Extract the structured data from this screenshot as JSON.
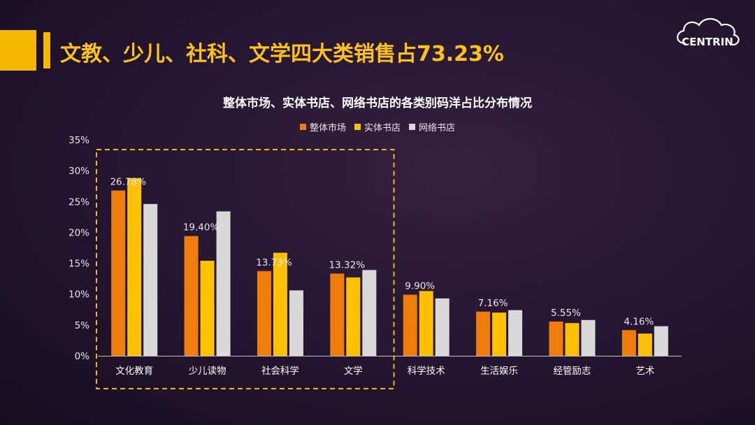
{
  "header": {
    "headline": "文教、少儿、社科、文学四大类销售占73.23%",
    "logo_text": "CENTRIN"
  },
  "colors": {
    "accent": "#f5b800",
    "series_overall": "#ef7d0c",
    "series_physical": "#ffc000",
    "series_online": "#d9d9d9",
    "highlight_box": "#f5b800"
  },
  "chart_data": {
    "type": "bar",
    "title": "整体市场、实体书店、网络书店的各类别码洋占比分布情况",
    "categories": [
      "文化教育",
      "少儿读物",
      "社会科学",
      "文学",
      "科学技术",
      "生活娱乐",
      "经管励志",
      "艺术"
    ],
    "series": [
      {
        "name": "整体市场",
        "values": [
          26.78,
          19.4,
          13.73,
          13.32,
          9.9,
          7.16,
          5.55,
          4.16
        ]
      },
      {
        "name": "实体书店",
        "values": [
          28.8,
          15.4,
          16.7,
          12.7,
          10.5,
          7.0,
          5.3,
          3.6
        ]
      },
      {
        "name": "网络书店",
        "values": [
          24.6,
          23.4,
          10.6,
          13.9,
          9.3,
          7.4,
          5.8,
          4.8
        ]
      }
    ],
    "data_labels": [
      "26.78%",
      "19.40%",
      "13.73%",
      "13.32%",
      "9.90%",
      "7.16%",
      "5.55%",
      "4.16%"
    ],
    "yticks": [
      "0%",
      "5%",
      "10%",
      "15%",
      "20%",
      "25%",
      "30%",
      "35%"
    ],
    "ylim": [
      0,
      35
    ],
    "xlabel": "",
    "ylabel": "",
    "legend_position": "top-center",
    "highlighted_categories": [
      "文化教育",
      "少儿读物",
      "社会科学",
      "文学"
    ]
  }
}
